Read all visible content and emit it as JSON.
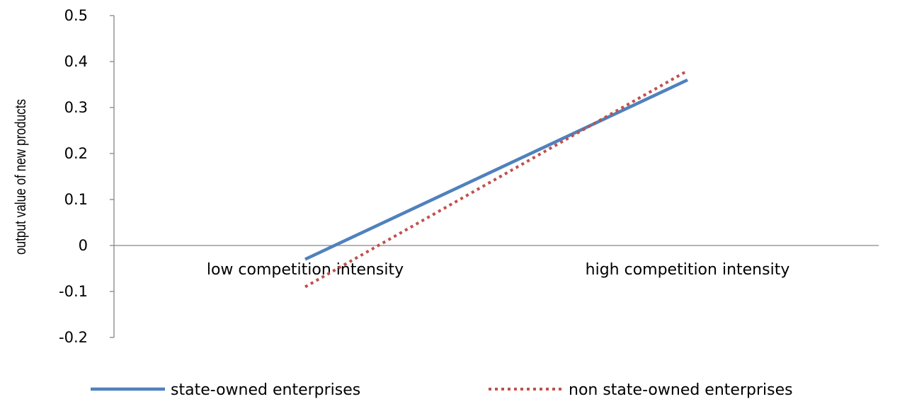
{
  "chart_data": {
    "type": "line",
    "title": "",
    "xlabel": "",
    "ylabel": "output value of new products",
    "categories": [
      "low competition intensity",
      "high competition intensity"
    ],
    "ylim": [
      -0.2,
      0.5
    ],
    "yticks": [
      "0.5",
      "0.4",
      "0.3",
      "0.2",
      "0.1",
      "0",
      "-0.1",
      "-0.2"
    ],
    "ytick_values": [
      0.5,
      0.4,
      0.3,
      0.2,
      0.1,
      0,
      -0.1,
      -0.2
    ],
    "grid": false,
    "legend_position": "bottom",
    "series": [
      {
        "name": "state-owned enterprises",
        "values": [
          -0.03,
          0.36
        ],
        "color": "#4F81BD",
        "style": "solid"
      },
      {
        "name": "non state-owned enterprises",
        "values": [
          -0.09,
          0.38
        ],
        "color": "#C0504D",
        "style": "dotted"
      }
    ]
  }
}
